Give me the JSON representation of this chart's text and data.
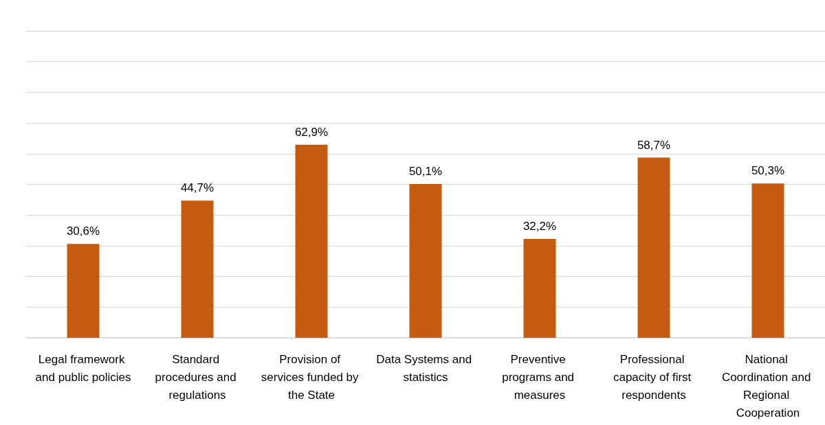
{
  "chart_data": {
    "type": "bar",
    "categories": [
      "Legal framework and public policies",
      "Standard procedures and regulations",
      "Provision of services funded by the State",
      "Data Systems and statistics",
      "Preventive programs and measures",
      "Professional capacity of first respondents",
      "National Coordination and Regional Cooperation"
    ],
    "values": [
      30.6,
      44.7,
      62.9,
      50.1,
      32.2,
      58.7,
      50.3
    ],
    "value_labels": [
      "30,6%",
      "44,7%",
      "62,9%",
      "50,1%",
      "32,2%",
      "58,7%",
      "50,3%"
    ],
    "color": "#c55a11",
    "ylim": [
      0,
      100
    ],
    "yticks": [
      {
        "value": 0,
        "label": null
      },
      {
        "value": 10,
        "label": null
      },
      {
        "value": 20,
        "label": null
      },
      {
        "value": 30,
        "label": null
      },
      {
        "value": 40,
        "label": null
      },
      {
        "value": 50,
        "label": null
      },
      {
        "value": 60,
        "label": null
      },
      {
        "value": 70,
        "label": null
      },
      {
        "value": 80,
        "label": null
      },
      {
        "value": 90,
        "label": null
      },
      {
        "value": 100,
        "label": null
      }
    ],
    "grid": "y",
    "tick_labels": "x"
  }
}
